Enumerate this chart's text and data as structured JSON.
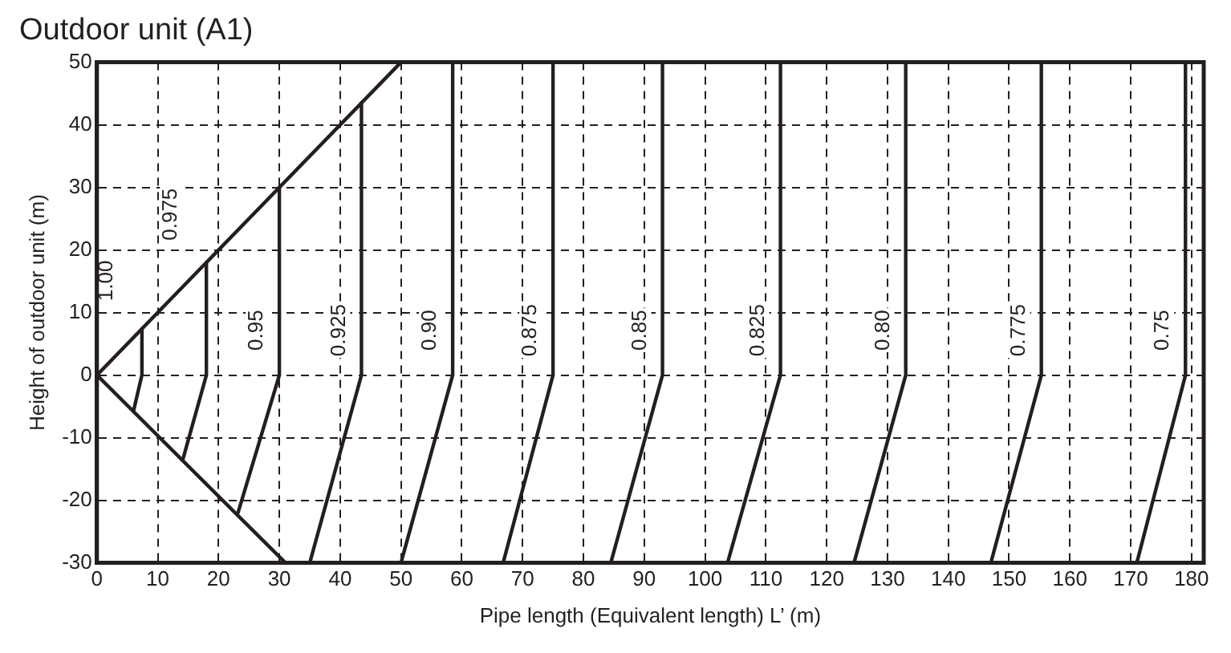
{
  "chart_data": {
    "type": "line",
    "title": "Outdoor unit (A1)",
    "xlabel": "Pipe length (Equivalent length) L’ (m)",
    "ylabel": "Height of outdoor unit (m)",
    "xlim": [
      0,
      182
    ],
    "xticks": [
      0,
      10,
      20,
      30,
      40,
      50,
      60,
      70,
      80,
      90,
      100,
      110,
      120,
      130,
      140,
      150,
      160,
      170,
      180
    ],
    "ylim": [
      -30,
      50
    ],
    "yticks": [
      -30,
      -20,
      -10,
      0,
      10,
      20,
      30,
      40,
      50
    ],
    "grid": true,
    "legend": false,
    "marker": "none",
    "line_style": "solid",
    "series": [
      {
        "color": "#231f20",
        "x": [
          0,
          50
        ],
        "values": [
          0,
          50
        ]
      },
      {
        "color": "#231f20",
        "x": [
          0,
          31
        ],
        "values": [
          0,
          -30
        ]
      },
      {
        "name": "1.00",
        "color": "#231f20",
        "x": [
          7.4,
          7.4,
          6
        ],
        "values": [
          7.4,
          0,
          -5.8
        ]
      },
      {
        "name": "0.975",
        "color": "#231f20",
        "x": [
          18,
          18,
          14.1
        ],
        "values": [
          18,
          0,
          -13.6
        ]
      },
      {
        "name": "0.95",
        "color": "#231f20",
        "x": [
          30,
          30,
          23.2
        ],
        "values": [
          30,
          0,
          -22
        ]
      },
      {
        "name": "0.925",
        "color": "#231f20",
        "x": [
          43.5,
          43.5,
          35
        ],
        "values": [
          43.5,
          0,
          -30
        ]
      },
      {
        "name": "0.90",
        "color": "#231f20",
        "x": [
          58.5,
          58.5,
          50
        ],
        "values": [
          50,
          0,
          -30
        ]
      },
      {
        "name": "0.875",
        "color": "#231f20",
        "x": [
          75,
          75,
          66.8
        ],
        "values": [
          50,
          0,
          -30
        ]
      },
      {
        "name": "0.85",
        "color": "#231f20",
        "x": [
          93,
          93,
          84.5
        ],
        "values": [
          50,
          0,
          -30
        ]
      },
      {
        "name": "0.825",
        "color": "#231f20",
        "x": [
          112.4,
          112.4,
          103.7
        ],
        "values": [
          50,
          0,
          -30
        ]
      },
      {
        "name": "0.80",
        "color": "#231f20",
        "x": [
          133,
          133,
          124.5
        ],
        "values": [
          50,
          0,
          -30
        ]
      },
      {
        "name": "0.775",
        "color": "#231f20",
        "x": [
          155.3,
          155.3,
          147
        ],
        "values": [
          50,
          0,
          -30
        ]
      },
      {
        "name": "0.75",
        "color": "#231f20",
        "x": [
          179,
          179,
          171
        ],
        "values": [
          50,
          0,
          -30
        ]
      }
    ]
  }
}
